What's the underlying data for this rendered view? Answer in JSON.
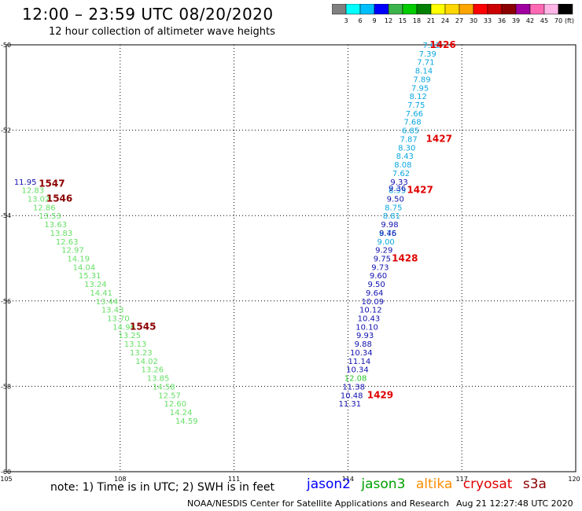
{
  "header": {
    "title": "12:00 – 23:59 UTC 08/20/2020",
    "subtitle": "12 hour collection of altimeter wave heights"
  },
  "colorbar": {
    "colors": [
      "#808080",
      "#00ffff",
      "#00bfff",
      "#0000ff",
      "#3cb44b",
      "#00cc00",
      "#008000",
      "#ffff00",
      "#ffd700",
      "#ffa500",
      "#ff0000",
      "#cc0000",
      "#8b0000",
      "#a000a0",
      "#ff69b4",
      "#ffb6e6",
      "#000000"
    ],
    "labels": [
      "3",
      "6",
      "9",
      "12",
      "15",
      "18",
      "21",
      "24",
      "27",
      "30",
      "33",
      "36",
      "39",
      "42",
      "45",
      "70"
    ],
    "unit": "(ft)"
  },
  "footer": {
    "note": "note:  1) Time is in UTC;  2) SWH is in feet",
    "sources": [
      {
        "name": "jason2",
        "color": "#0000ff"
      },
      {
        "name": "jason3",
        "color": "#00a000"
      },
      {
        "name": "altika",
        "color": "#ff8c00"
      },
      {
        "name": "cryosat",
        "color": "#e00000"
      },
      {
        "name": "s3a",
        "color": "#8b0000"
      }
    ],
    "credit": "NOAA/NESDIS Center for Satellite Applications and Research",
    "timestamp": "Aug 21 12:27:48 UTC 2020"
  },
  "chart_data": {
    "type": "scatter",
    "xlim": [
      105,
      120
    ],
    "ylim": [
      -50,
      -60
    ],
    "x_ticks": [
      "105",
      "108",
      "111",
      "114",
      "117",
      "120"
    ],
    "y_ticks": [
      "-50",
      "-52",
      "-54",
      "-56",
      "-58",
      "-60"
    ],
    "grid": true,
    "series": [
      {
        "color": "#0aa6e0",
        "points": [
          {
            "x": 116.2,
            "y": -50.0,
            "label": "7.62"
          },
          {
            "x": 116.1,
            "y": -50.2,
            "label": "7.39"
          },
          {
            "x": 116.05,
            "y": -50.4,
            "label": "7.71"
          },
          {
            "x": 116.0,
            "y": -50.6,
            "label": "8.14"
          },
          {
            "x": 115.95,
            "y": -50.8,
            "label": "7.89"
          },
          {
            "x": 115.9,
            "y": -51.0,
            "label": "7.95"
          },
          {
            "x": 115.85,
            "y": -51.2,
            "label": "8.12"
          },
          {
            "x": 115.8,
            "y": -51.4,
            "label": "7.75"
          },
          {
            "x": 115.75,
            "y": -51.6,
            "label": "7.66"
          },
          {
            "x": 115.7,
            "y": -51.8,
            "label": "7.68"
          },
          {
            "x": 115.65,
            "y": -52.0,
            "label": "6.85"
          },
          {
            "x": 115.6,
            "y": -52.2,
            "label": "7.87"
          },
          {
            "x": 115.55,
            "y": -52.4,
            "label": "8.30"
          },
          {
            "x": 115.5,
            "y": -52.6,
            "label": "8.43"
          },
          {
            "x": 115.45,
            "y": -52.8,
            "label": "8.08"
          },
          {
            "x": 115.4,
            "y": -53.0,
            "label": "7.62"
          },
          {
            "x": 115.3,
            "y": -53.4,
            "label": "8.95"
          },
          {
            "x": 115.2,
            "y": -53.8,
            "label": "8.75"
          },
          {
            "x": 115.15,
            "y": -54.0,
            "label": "8.81"
          },
          {
            "x": 115.05,
            "y": -54.4,
            "label": "8.75"
          },
          {
            "x": 115.0,
            "y": -54.6,
            "label": "9.00"
          }
        ]
      },
      {
        "color": "#1010b0",
        "points": [
          {
            "x": 115.35,
            "y": -53.2,
            "label": "9.33"
          },
          {
            "x": 115.3,
            "y": -53.35,
            "label": "9.36"
          },
          {
            "x": 115.25,
            "y": -53.6,
            "label": "9.50"
          },
          {
            "x": 115.1,
            "y": -54.2,
            "label": "9.98"
          },
          {
            "x": 115.05,
            "y": -54.4,
            "label": "9.46"
          },
          {
            "x": 114.95,
            "y": -54.8,
            "label": "9.29"
          },
          {
            "x": 114.9,
            "y": -55.0,
            "label": "9.75"
          },
          {
            "x": 114.85,
            "y": -55.2,
            "label": "9.73"
          },
          {
            "x": 114.8,
            "y": -55.4,
            "label": "9.60"
          },
          {
            "x": 114.75,
            "y": -55.6,
            "label": "9.50"
          },
          {
            "x": 114.7,
            "y": -55.8,
            "label": "9.64"
          },
          {
            "x": 114.65,
            "y": -56.0,
            "label": "10.09"
          },
          {
            "x": 114.6,
            "y": -56.2,
            "label": "10.12"
          },
          {
            "x": 114.55,
            "y": -56.4,
            "label": "10.43"
          },
          {
            "x": 114.5,
            "y": -56.6,
            "label": "10.10"
          },
          {
            "x": 114.45,
            "y": -56.8,
            "label": "9.93"
          },
          {
            "x": 114.4,
            "y": -57.0,
            "label": "9.88"
          },
          {
            "x": 114.35,
            "y": -57.2,
            "label": "10.34"
          },
          {
            "x": 114.3,
            "y": -57.4,
            "label": "11.14"
          },
          {
            "x": 114.25,
            "y": -57.6,
            "label": "10.34"
          },
          {
            "x": 114.15,
            "y": -58.0,
            "label": "11.38"
          },
          {
            "x": 114.1,
            "y": -58.2,
            "label": "10.48"
          },
          {
            "x": 114.05,
            "y": -58.4,
            "label": "11.31"
          },
          {
            "x": 105.5,
            "y": -53.2,
            "label": "11.95"
          }
        ]
      },
      {
        "color": "#28c828",
        "points": [
          {
            "x": 114.2,
            "y": -57.8,
            "label": "12.08"
          }
        ]
      },
      {
        "color": "#66e066",
        "points": [
          {
            "x": 105.7,
            "y": -53.4,
            "label": "12.83"
          },
          {
            "x": 105.85,
            "y": -53.6,
            "label": "13.02"
          },
          {
            "x": 106.0,
            "y": -53.8,
            "label": "12.86"
          },
          {
            "x": 106.15,
            "y": -54.0,
            "label": "13.53"
          },
          {
            "x": 106.3,
            "y": -54.2,
            "label": "13.63"
          },
          {
            "x": 106.45,
            "y": -54.4,
            "label": "13.83"
          },
          {
            "x": 106.6,
            "y": -54.6,
            "label": "12.63"
          },
          {
            "x": 106.75,
            "y": -54.8,
            "label": "12.97"
          },
          {
            "x": 106.9,
            "y": -55.0,
            "label": "14.19"
          },
          {
            "x": 107.05,
            "y": -55.2,
            "label": "14.04"
          },
          {
            "x": 107.2,
            "y": -55.4,
            "label": "15.31"
          },
          {
            "x": 107.35,
            "y": -55.6,
            "label": "13.24"
          },
          {
            "x": 107.5,
            "y": -55.8,
            "label": "14.41"
          },
          {
            "x": 107.65,
            "y": -56.0,
            "label": "13.44"
          },
          {
            "x": 107.8,
            "y": -56.2,
            "label": "13.43"
          },
          {
            "x": 107.95,
            "y": -56.4,
            "label": "13.70"
          },
          {
            "x": 108.1,
            "y": -56.6,
            "label": "14.96"
          },
          {
            "x": 108.25,
            "y": -56.8,
            "label": "13.25"
          },
          {
            "x": 108.4,
            "y": -57.0,
            "label": "13.13"
          },
          {
            "x": 108.55,
            "y": -57.2,
            "label": "13.23"
          },
          {
            "x": 108.7,
            "y": -57.4,
            "label": "14.02"
          },
          {
            "x": 108.85,
            "y": -57.6,
            "label": "13.26"
          },
          {
            "x": 109.0,
            "y": -57.8,
            "label": "13.85"
          },
          {
            "x": 109.15,
            "y": -58.0,
            "label": "14.58"
          },
          {
            "x": 109.3,
            "y": -58.2,
            "label": "12.57"
          },
          {
            "x": 109.45,
            "y": -58.4,
            "label": "12.60"
          },
          {
            "x": 109.6,
            "y": -58.6,
            "label": "14.24"
          },
          {
            "x": 109.75,
            "y": -58.8,
            "label": "14.59"
          }
        ]
      }
    ],
    "time_labels": [
      {
        "x": 116.5,
        "y": -50.0,
        "label": "1426",
        "color": "#e00000"
      },
      {
        "x": 116.4,
        "y": -52.2,
        "label": "1427",
        "color": "#e00000"
      },
      {
        "x": 115.9,
        "y": -53.4,
        "label": "1427",
        "color": "#e00000"
      },
      {
        "x": 115.5,
        "y": -55.0,
        "label": "1428",
        "color": "#e00000"
      },
      {
        "x": 114.85,
        "y": -58.2,
        "label": "1429",
        "color": "#e00000"
      },
      {
        "x": 106.2,
        "y": -53.25,
        "label": "1547",
        "color": "#8b0000"
      },
      {
        "x": 106.4,
        "y": -53.6,
        "label": "1546",
        "color": "#8b0000"
      },
      {
        "x": 108.6,
        "y": -56.6,
        "label": "1545",
        "color": "#8b0000"
      }
    ]
  }
}
